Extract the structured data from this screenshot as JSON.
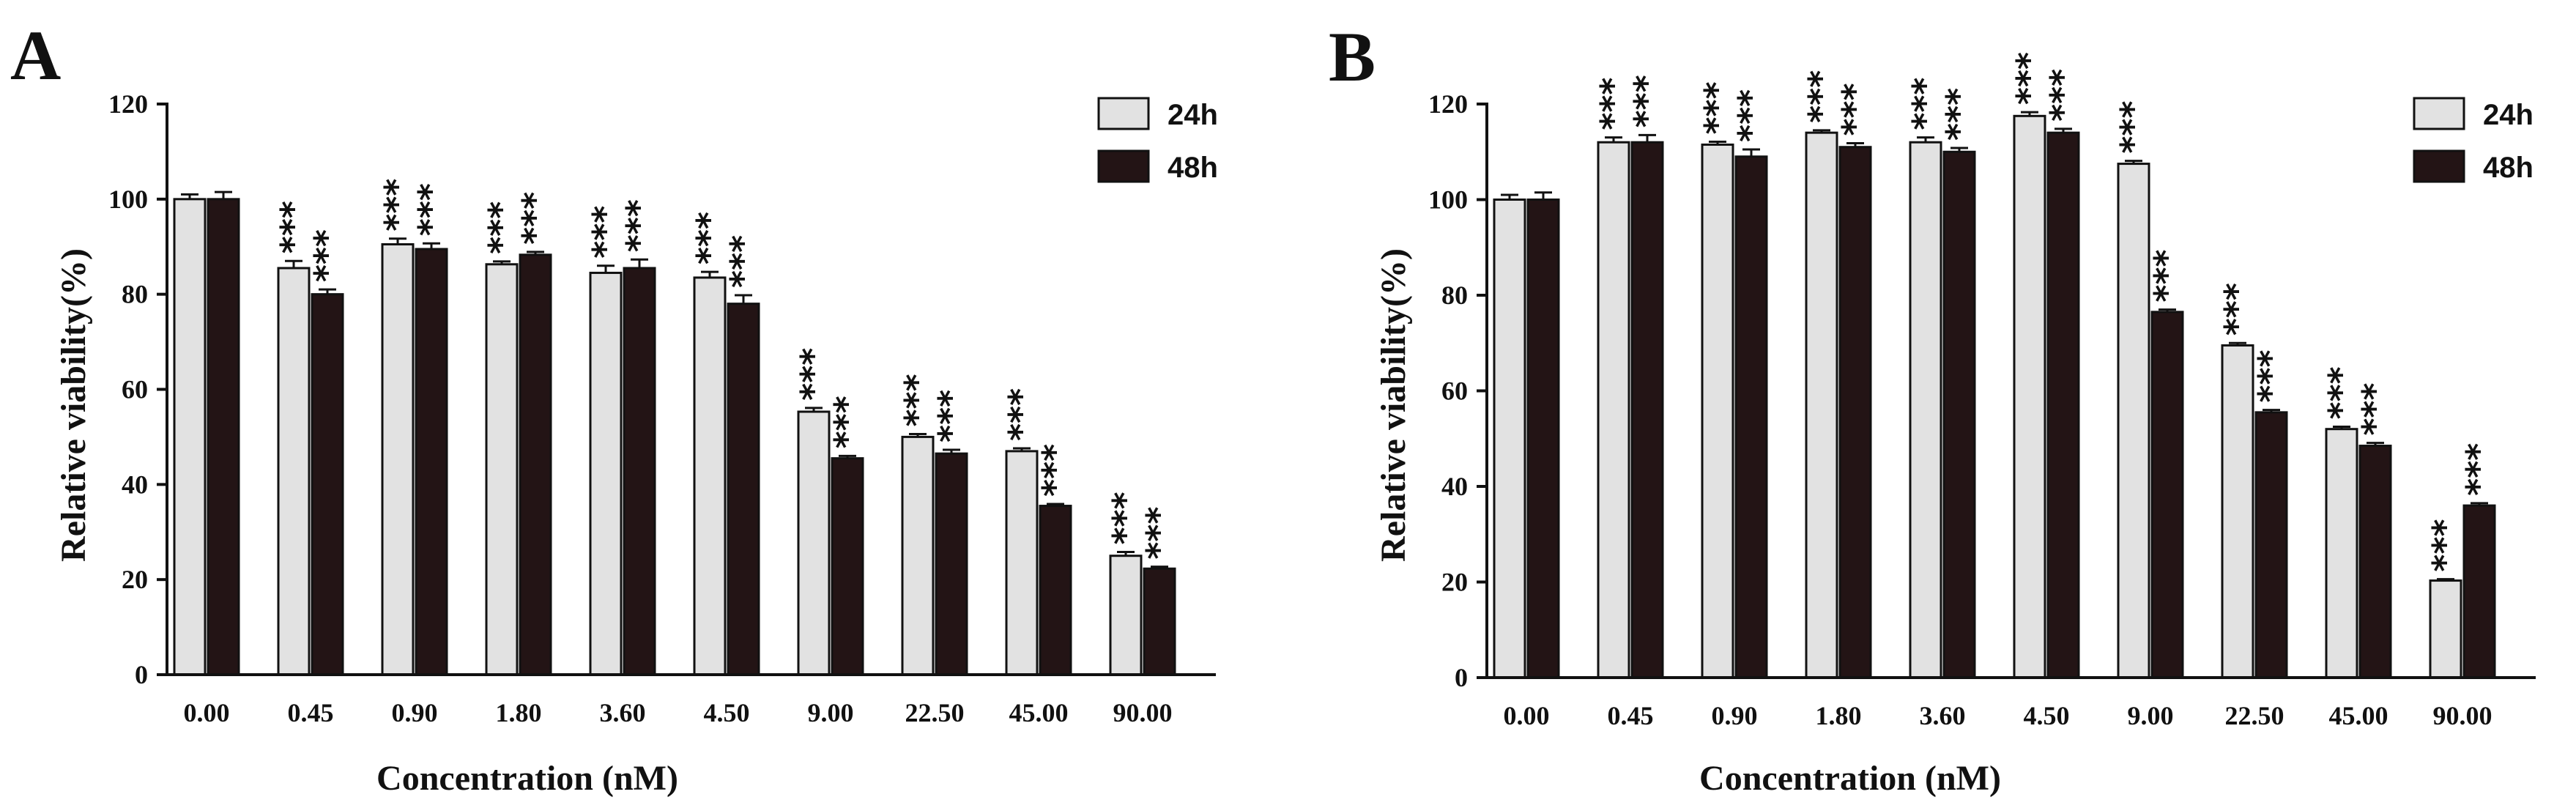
{
  "colors": {
    "h24": "#e2e2e2",
    "h48": "#231415",
    "stroke": "#111111"
  },
  "chart_data": [
    {
      "type": "bar",
      "panel": "A",
      "title": "",
      "xlabel": "Concentration (nM)",
      "ylabel": "Relative viability(%)",
      "ylim": [
        0,
        120
      ],
      "yticks": [
        "0",
        "20",
        "40",
        "60",
        "80",
        "100",
        "120"
      ],
      "categories": [
        "0.00",
        "0.45",
        "0.90",
        "1.80",
        "3.60",
        "4.50",
        "9.00",
        "22.50",
        "45.00",
        "90.00"
      ],
      "legend": [
        "24h",
        "48h"
      ],
      "legend_position": "top-right",
      "series": [
        {
          "name": "24h",
          "values": [
            100,
            85.5,
            90.5,
            86.3,
            84.5,
            83.5,
            55.3,
            50,
            47,
            25
          ],
          "errors": [
            1,
            1.5,
            1.2,
            0.6,
            1.5,
            1.2,
            0.8,
            0.6,
            0.6,
            0.8
          ],
          "significance": [
            "",
            "***",
            "***",
            "***",
            "***",
            "***",
            "***",
            "***",
            "***",
            "***"
          ]
        },
        {
          "name": "48h",
          "values": [
            100,
            80,
            89.5,
            88.3,
            85.5,
            78,
            45.5,
            46.5,
            35.5,
            22.3
          ],
          "errors": [
            1.5,
            1,
            1.2,
            0.6,
            1.8,
            1.8,
            0.5,
            0.8,
            0.4,
            0.4
          ],
          "significance": [
            "",
            "***",
            "***",
            "***",
            "***",
            "***",
            "***",
            "***",
            "***",
            "***"
          ]
        }
      ]
    },
    {
      "type": "bar",
      "panel": "B",
      "title": "",
      "xlabel": "Concentration (nM)",
      "ylabel": "Relative viability(%)",
      "ylim": [
        0,
        120
      ],
      "yticks": [
        "0",
        "20",
        "40",
        "60",
        "80",
        "100",
        "120"
      ],
      "categories": [
        "0.00",
        "0.45",
        "0.90",
        "1.80",
        "3.60",
        "4.50",
        "9.00",
        "22.50",
        "45.00",
        "90.00"
      ],
      "legend": [
        "24h",
        "48h"
      ],
      "legend_position": "top-right",
      "series": [
        {
          "name": "24h",
          "values": [
            100,
            112,
            111.5,
            114,
            112,
            117.5,
            107.5,
            69.5,
            52,
            20.3
          ],
          "errors": [
            1,
            1,
            0.6,
            0.5,
            1,
            0.8,
            0.6,
            0.5,
            0.5,
            0.3
          ],
          "significance": [
            "",
            "***",
            "***",
            "***",
            "***",
            "***",
            "***",
            "***",
            "***",
            "***"
          ]
        },
        {
          "name": "48h",
          "values": [
            100,
            112,
            109,
            111,
            110,
            114,
            76.5,
            55.5,
            48.5,
            36
          ],
          "errors": [
            1.5,
            1.5,
            1.5,
            0.8,
            0.8,
            0.8,
            0.5,
            0.5,
            0.6,
            0.5
          ],
          "significance": [
            "",
            "***",
            "***",
            "***",
            "***",
            "***",
            "***",
            "***",
            "***",
            "***"
          ]
        }
      ]
    }
  ]
}
